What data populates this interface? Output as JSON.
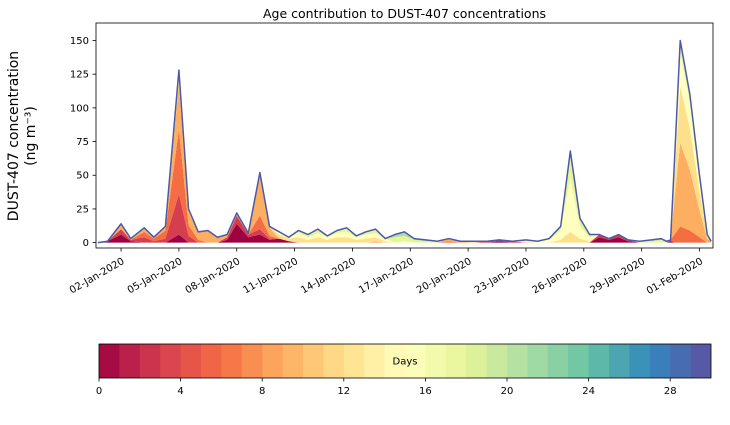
{
  "title": "Age contribution to DUST-407 concentrations",
  "ylabel_line1": "DUST-407 concentration",
  "ylabel_line2": "(ng m⁻³)",
  "line_color": "#4d5aa7",
  "cmap_anchors": [
    "#9e0142",
    "#d53e4f",
    "#f46d43",
    "#fdae61",
    "#fee08b",
    "#ffffbf",
    "#e6f598",
    "#abdda4",
    "#66c2a5",
    "#3288bd",
    "#5e4fa2"
  ],
  "colorbar": {
    "label": "Days",
    "ticks": [
      0,
      4,
      8,
      12,
      16,
      20,
      24,
      28
    ],
    "vmin": 0,
    "vmax": 30,
    "n_cells": 30
  },
  "chart_data": {
    "type": "area",
    "stacked": true,
    "title": "Age contribution to DUST-407 concentrations",
    "ylabel": "DUST-407 concentration (ng m⁻³)",
    "legend": "colorbar: Days (age), Spectral colormap, 0-30",
    "xlim": [
      0.7,
      32.7
    ],
    "ylim": [
      -4,
      163
    ],
    "y_ticks": [
      0,
      25,
      50,
      75,
      100,
      125,
      150
    ],
    "x_ticks": [
      2,
      5,
      8,
      11,
      14,
      17,
      20,
      23,
      26,
      29,
      32
    ],
    "x_tick_labels": [
      "02-Jan-2020",
      "05-Jan-2020",
      "08-Jan-2020",
      "11-Jan-2020",
      "14-Jan-2020",
      "17-Jan-2020",
      "20-Jan-2020",
      "23-Jan-2020",
      "26-Jan-2020",
      "29-Jan-2020",
      "01-Feb-2020"
    ],
    "x_unit": "day of month (1 = 01-Jan-2020)",
    "x": [
      0.8,
      1.3,
      2.0,
      2.5,
      3.2,
      3.7,
      4.3,
      5.0,
      5.5,
      6.0,
      6.5,
      7.0,
      7.5,
      8.0,
      8.6,
      9.2,
      9.7,
      10.2,
      10.7,
      11.2,
      11.7,
      12.2,
      12.7,
      13.2,
      13.7,
      14.2,
      14.7,
      15.2,
      15.7,
      16.2,
      16.7,
      17.2,
      17.8,
      18.4,
      19.0,
      19.6,
      20.3,
      21.0,
      21.6,
      22.3,
      23.0,
      23.6,
      24.2,
      24.8,
      25.3,
      25.8,
      26.3,
      26.8,
      27.3,
      27.8,
      28.3,
      28.9,
      29.5,
      30.0,
      30.3,
      30.5,
      30.7,
      31.0,
      31.5,
      32.0,
      32.4,
      32.6
    ],
    "series": [
      {
        "name": "0-3",
        "color": "#9e0142",
        "values": [
          0,
          1,
          6,
          1,
          0,
          0,
          0,
          6,
          0,
          0,
          0,
          0,
          2,
          14,
          4,
          6,
          2,
          3,
          1,
          0,
          0,
          0,
          0,
          0,
          0,
          0,
          0,
          0,
          0,
          0,
          0,
          0,
          0,
          0,
          0,
          0,
          0,
          0,
          1,
          0,
          0,
          0,
          0,
          0,
          0,
          0,
          0,
          4,
          2,
          4,
          1,
          0,
          0,
          0,
          0,
          1,
          0,
          0,
          0,
          0,
          0,
          0
        ]
      },
      {
        "name": "3-6",
        "color": "#d53e4f",
        "values": [
          0,
          0,
          4,
          1,
          4,
          1,
          3,
          30,
          5,
          0,
          0,
          0,
          2,
          6,
          2,
          4,
          1,
          0,
          0,
          0,
          0,
          0,
          0,
          0,
          0,
          0,
          0,
          0,
          0,
          0,
          0,
          0,
          0,
          0,
          0,
          0,
          0,
          1,
          1,
          1,
          0,
          0,
          0,
          0,
          0,
          0,
          0,
          2,
          1,
          2,
          1,
          0,
          0,
          0,
          0,
          1,
          0,
          0,
          0,
          0,
          0,
          0
        ]
      },
      {
        "name": "6-9",
        "color": "#f46d43",
        "values": [
          0,
          0,
          0,
          0,
          4,
          2,
          6,
          48,
          8,
          2,
          0,
          0,
          0,
          0,
          0,
          10,
          2,
          0,
          0,
          0,
          0,
          0,
          0,
          0,
          0,
          0,
          0,
          0,
          0,
          0,
          0,
          0,
          0,
          0,
          1,
          0,
          0,
          0,
          0,
          0,
          0,
          0,
          0,
          0,
          0,
          0,
          0,
          0,
          0,
          0,
          0,
          0,
          0,
          0,
          0,
          0,
          6,
          12,
          9,
          4,
          0,
          0
        ]
      },
      {
        "name": "9-12",
        "color": "#fdae61",
        "values": [
          0,
          0,
          4,
          1,
          3,
          1,
          3,
          34,
          10,
          6,
          9,
          4,
          2,
          2,
          1,
          30,
          6,
          0,
          0,
          0,
          0,
          0,
          0,
          0,
          0,
          0,
          0,
          1,
          0,
          0,
          0,
          0,
          0,
          0,
          2,
          1,
          0,
          0,
          0,
          0,
          0,
          0,
          0,
          0,
          0,
          0,
          0,
          0,
          0,
          0,
          0,
          0,
          0,
          0,
          0,
          0,
          26,
          62,
          45,
          20,
          3,
          1
        ]
      },
      {
        "name": "12-15",
        "color": "#fee08b",
        "values": [
          0,
          0,
          0,
          0,
          0,
          0,
          0,
          10,
          2,
          0,
          0,
          0,
          0,
          0,
          0,
          2,
          1,
          3,
          2,
          4,
          2,
          4,
          2,
          4,
          4,
          2,
          3,
          3,
          1,
          0,
          0,
          0,
          0,
          0,
          0,
          0,
          1,
          0,
          0,
          0,
          1,
          0,
          0,
          2,
          8,
          3,
          1,
          0,
          0,
          0,
          0,
          0,
          0,
          0,
          0,
          0,
          16,
          42,
          31,
          14,
          2,
          0
        ]
      },
      {
        "name": "15-18",
        "color": "#ffffbf",
        "values": [
          0,
          0,
          0,
          0,
          0,
          0,
          0,
          0,
          0,
          0,
          0,
          0,
          0,
          0,
          0,
          0,
          0,
          2,
          1,
          3,
          2,
          3,
          2,
          3,
          4,
          2,
          3,
          3,
          2,
          0,
          1,
          0,
          0,
          0,
          0,
          0,
          0,
          0,
          0,
          0,
          1,
          1,
          2,
          7,
          40,
          9,
          3,
          0,
          0,
          0,
          0,
          0,
          0,
          0,
          0,
          0,
          10,
          26,
          19,
          10,
          1,
          0
        ]
      },
      {
        "name": "18-21",
        "color": "#e6f598",
        "values": [
          0,
          0,
          0,
          0,
          0,
          0,
          0,
          0,
          0,
          0,
          0,
          0,
          0,
          0,
          0,
          0,
          0,
          0,
          0,
          2,
          2,
          3,
          1,
          2,
          3,
          1,
          2,
          3,
          0,
          4,
          4,
          2,
          1,
          1,
          0,
          0,
          0,
          0,
          0,
          0,
          0,
          0,
          1,
          3,
          16,
          5,
          2,
          0,
          0,
          0,
          0,
          1,
          1,
          2,
          0,
          0,
          2,
          8,
          6,
          2,
          0,
          0
        ]
      },
      {
        "name": "21-24",
        "color": "#abdda4",
        "values": [
          0,
          0,
          0,
          0,
          0,
          0,
          0,
          0,
          0,
          0,
          0,
          0,
          0,
          0,
          0,
          0,
          0,
          0,
          0,
          0,
          0,
          0,
          0,
          0,
          0,
          0,
          0,
          0,
          0,
          2,
          3,
          1,
          1,
          0,
          0,
          0,
          0,
          0,
          0,
          0,
          0,
          0,
          0,
          0,
          4,
          1,
          0,
          0,
          0,
          0,
          0,
          0,
          1,
          1,
          1,
          0,
          0,
          0,
          0,
          0,
          0,
          0
        ]
      },
      {
        "name": "24-27",
        "color": "#66c2a5",
        "values": [
          0,
          0,
          0,
          0,
          0,
          0,
          0,
          0,
          0,
          0,
          0,
          0,
          0,
          0,
          0,
          0,
          0,
          0,
          0,
          0,
          0,
          0,
          0,
          0,
          0,
          0,
          0,
          0,
          0,
          0,
          0,
          0,
          0,
          0,
          0,
          0,
          0,
          0,
          0,
          0,
          0,
          0,
          0,
          0,
          0,
          0,
          0,
          0,
          0,
          0,
          0,
          0,
          0,
          0,
          0,
          0,
          0,
          0,
          0,
          0,
          0,
          0
        ]
      },
      {
        "name": "27-30",
        "color": "#3288bd",
        "values": [
          0,
          0,
          0,
          0,
          0,
          0,
          0,
          0,
          0,
          0,
          0,
          0,
          0,
          0,
          0,
          0,
          0,
          0,
          0,
          0,
          0,
          0,
          0,
          0,
          0,
          0,
          0,
          0,
          0,
          0,
          0,
          0,
          0,
          0,
          0,
          0,
          0,
          0,
          0,
          0,
          0,
          0,
          0,
          0,
          0,
          0,
          0,
          0,
          0,
          0,
          0,
          0,
          0,
          0,
          0,
          0,
          0,
          0,
          0,
          0,
          0,
          0
        ]
      }
    ]
  }
}
